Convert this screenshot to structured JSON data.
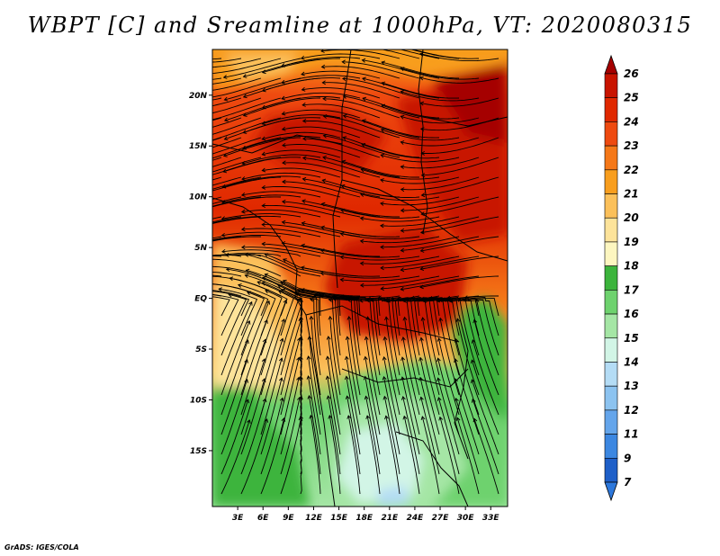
{
  "title": "WBPT [C] and Sreamline at 1000hPa, VT: 2020080315",
  "footer": "GrADS: IGES/COLA",
  "map": {
    "lon_range": [
      0,
      35
    ],
    "lat_range": [
      -20.5,
      24.5
    ],
    "x_ticks": [
      "3E",
      "6E",
      "9E",
      "12E",
      "15E",
      "18E",
      "21E",
      "24E",
      "27E",
      "30E",
      "33E"
    ],
    "y_ticks": [
      "20N",
      "15N",
      "10N",
      "5N",
      "EQ",
      "5S",
      "10S",
      "15S"
    ]
  },
  "colorbar": {
    "levels": [
      "26",
      "25",
      "24",
      "23",
      "22",
      "21",
      "20",
      "19",
      "18",
      "17",
      "16",
      "15",
      "14",
      "13",
      "12",
      "11",
      "9",
      "7"
    ],
    "colors": [
      "#a50000",
      "#c81400",
      "#e02800",
      "#ee4a10",
      "#f57818",
      "#f89e1e",
      "#fbc05a",
      "#fde39a",
      "#fdf6c0",
      "#3cb43c",
      "#6ed26e",
      "#a5e6a5",
      "#d2f5e6",
      "#b4dcf5",
      "#8cc3f0",
      "#64a5eb",
      "#3c87e1",
      "#1e5fc8",
      "#2d78dc"
    ]
  }
}
